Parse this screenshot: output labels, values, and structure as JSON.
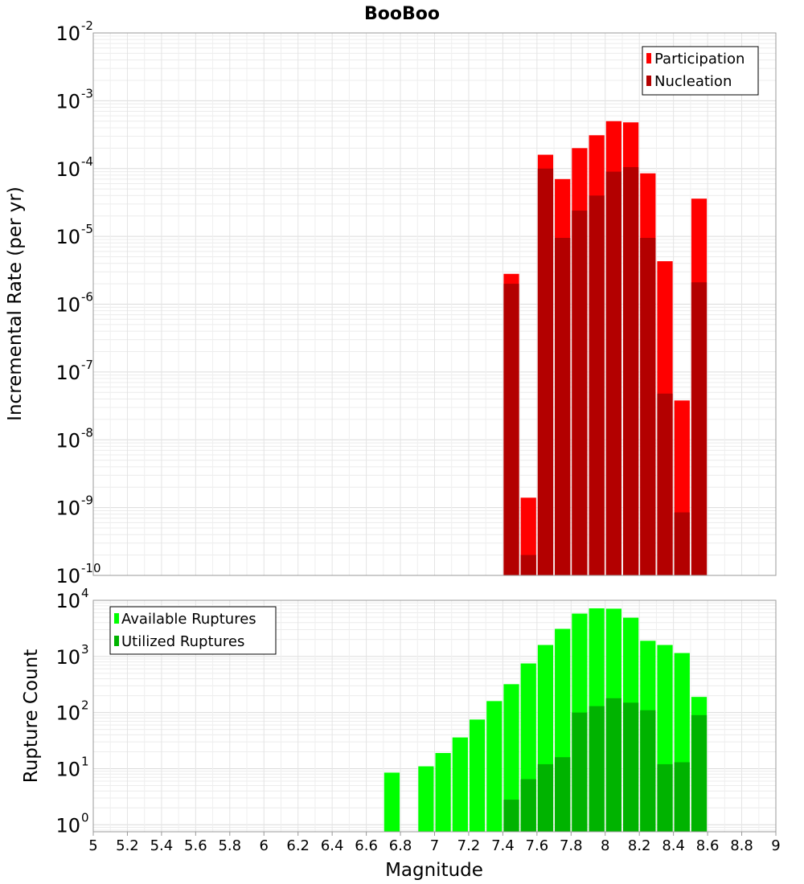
{
  "chart_data": [
    {
      "type": "bar",
      "title": "BooBoo",
      "xlabel": "",
      "ylabel": "Incremental Rate (per yr)",
      "yscale": "log",
      "ylim": [
        1e-10,
        0.01
      ],
      "xlim": [
        5,
        9
      ],
      "grid": true,
      "legend_position": "top-right",
      "ytick_bases": [
        "10",
        "10",
        "10",
        "10",
        "10",
        "10",
        "10",
        "10",
        "10"
      ],
      "ytick_exponents": [
        "-10",
        "-9",
        "-8",
        "-7",
        "-6",
        "-5",
        "-4",
        "-3",
        "-2"
      ],
      "bar_width": 0.1,
      "x": [
        7.45,
        7.55,
        7.65,
        7.75,
        7.85,
        7.95,
        8.05,
        8.15,
        8.25,
        8.35,
        8.45,
        8.55
      ],
      "series": [
        {
          "name": "Participation",
          "color": "#ff0000",
          "values": [
            2.8e-06,
            1.4e-09,
            0.00016,
            7e-05,
            0.0002,
            0.00031,
            0.0005,
            0.00048,
            8.5e-05,
            4.3e-06,
            3.8e-08,
            3.6e-05
          ]
        },
        {
          "name": "Nucleation",
          "color": "#b30000",
          "values": [
            2e-06,
            2e-10,
            0.0001,
            9.5e-06,
            2.4e-05,
            4e-05,
            9e-05,
            0.000105,
            9.5e-06,
            4.8e-08,
            8.5e-10,
            2.1e-06
          ]
        }
      ]
    },
    {
      "type": "bar",
      "title": "",
      "xlabel": "Magnitude",
      "ylabel": "Rupture Count",
      "yscale": "log",
      "ylim": [
        0.75,
        10000.0
      ],
      "xlim": [
        5,
        9
      ],
      "grid": true,
      "legend_position": "top-left",
      "ytick_bases": [
        "10",
        "10",
        "10",
        "10",
        "10"
      ],
      "ytick_exponents": [
        "0",
        "1",
        "2",
        "3",
        "4"
      ],
      "xticks": [
        "5",
        "5.2",
        "5.4",
        "5.6",
        "5.8",
        "6",
        "6.2",
        "6.4",
        "6.6",
        "6.8",
        "7",
        "7.2",
        "7.4",
        "7.6",
        "7.8",
        "8",
        "8.2",
        "8.4",
        "8.6",
        "8.8",
        "9"
      ],
      "bar_width": 0.1,
      "x": [
        6.75,
        6.85,
        6.95,
        7.05,
        7.15,
        7.25,
        7.35,
        7.45,
        7.55,
        7.65,
        7.75,
        7.85,
        7.95,
        8.05,
        8.15,
        8.25,
        8.35,
        8.45,
        8.55
      ],
      "series": [
        {
          "name": "Available Ruptures",
          "color": "#00ff00",
          "values": [
            8.5,
            0,
            11,
            19,
            36,
            75,
            160,
            320,
            750,
            1600,
            3100,
            5800,
            7200,
            7100,
            4900,
            1900,
            1600,
            1150,
            190
          ]
        },
        {
          "name": "Utilized Ruptures",
          "color": "#00b300",
          "values": [
            0,
            0,
            0,
            0,
            0,
            0,
            0,
            2.8,
            6.5,
            12,
            16,
            100,
            130,
            180,
            150,
            110,
            12,
            13,
            90
          ]
        }
      ]
    }
  ]
}
